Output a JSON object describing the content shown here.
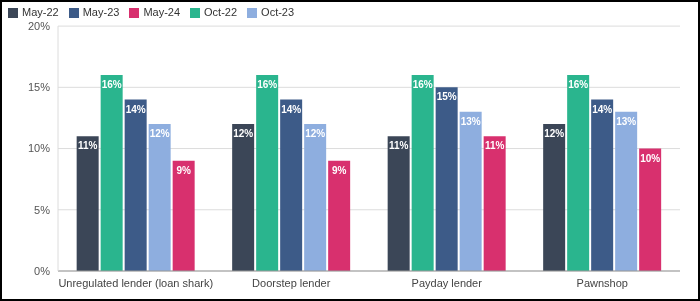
{
  "chart_data": {
    "type": "bar",
    "categories": [
      "Unregulated lender (loan shark)",
      "Doorstep lender",
      "Payday lender",
      "Pawnshop"
    ],
    "series": [
      {
        "name": "May-22",
        "color": "#3b4657",
        "values": [
          11,
          12,
          11,
          12
        ],
        "value_labels": [
          "11%",
          "12%",
          "11%",
          "12%"
        ]
      },
      {
        "name": "Oct-22",
        "color": "#2ab58e",
        "values": [
          16,
          16,
          16,
          16
        ],
        "value_labels": [
          "16%",
          "16%",
          "16%",
          "16%"
        ]
      },
      {
        "name": "May-23",
        "color": "#3d5b88",
        "values": [
          14,
          14,
          15,
          14
        ],
        "value_labels": [
          "14%",
          "14%",
          "15%",
          "14%"
        ]
      },
      {
        "name": "Oct-23",
        "color": "#8eaedf",
        "values": [
          12,
          12,
          13,
          13
        ],
        "value_labels": [
          "12%",
          "12%",
          "13%",
          "13%"
        ]
      },
      {
        "name": "May-24",
        "color": "#d8306e",
        "values": [
          9,
          9,
          11,
          10
        ],
        "value_labels": [
          "9%",
          "9%",
          "11%",
          "10%"
        ]
      }
    ],
    "ylim": [
      0,
      20
    ],
    "yticks": [
      {
        "value": 0,
        "label": "0%"
      },
      {
        "value": 5,
        "label": "5%"
      },
      {
        "value": 10,
        "label": "10%"
      },
      {
        "value": 15,
        "label": "15%"
      },
      {
        "value": 20,
        "label": "20%"
      }
    ],
    "grid": true,
    "legend": "top-left",
    "data_labels": true
  }
}
